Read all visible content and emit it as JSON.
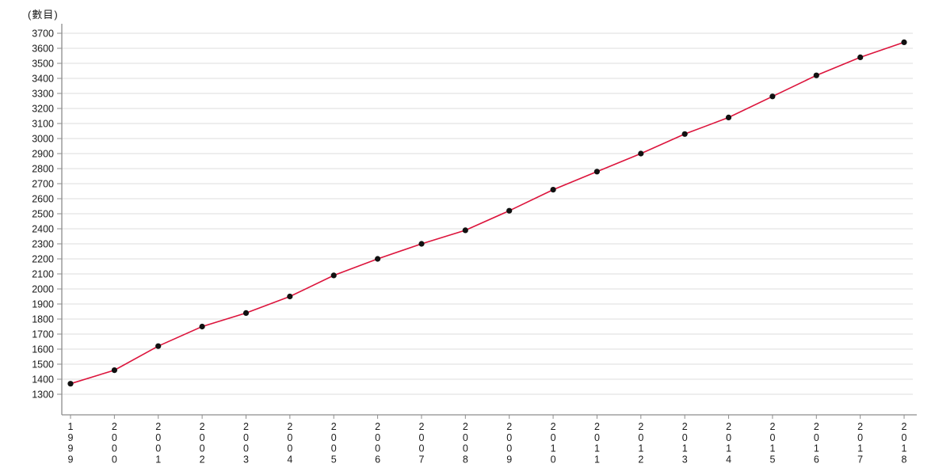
{
  "page": {
    "background_color": "#ffffff"
  },
  "chart_data": {
    "type": "line",
    "title": "",
    "ylabel": "(數目)",
    "xlabel": "",
    "legend_position": "none",
    "grid": true,
    "categories": [
      "1999",
      "2000",
      "2001",
      "2002",
      "2003",
      "2004",
      "2005",
      "2006",
      "2007",
      "2008",
      "2009",
      "2010",
      "2011",
      "2012",
      "2013",
      "2014",
      "2015",
      "2016",
      "2017",
      "2018"
    ],
    "series": [
      {
        "name": "數目",
        "values": [
          1370,
          1460,
          1620,
          1750,
          1840,
          1950,
          2090,
          2200,
          2300,
          2390,
          2520,
          2660,
          2780,
          2900,
          3030,
          3140,
          3280,
          3420,
          3540,
          3640
        ]
      }
    ],
    "y_ticks": [
      1300,
      1400,
      1500,
      1600,
      1700,
      1800,
      1900,
      2000,
      2100,
      2200,
      2300,
      2400,
      2500,
      2600,
      2700,
      2800,
      2900,
      3000,
      3100,
      3200,
      3300,
      3400,
      3500,
      3600,
      3700
    ],
    "ylim": [
      1165,
      3765
    ],
    "colors": {
      "line": "#dc143c",
      "marker": "#111111",
      "gridline": "#dcdcdc",
      "axis": "#8c8c8c",
      "tick": "#8c8c8c",
      "text": "#1a1a1a"
    }
  }
}
